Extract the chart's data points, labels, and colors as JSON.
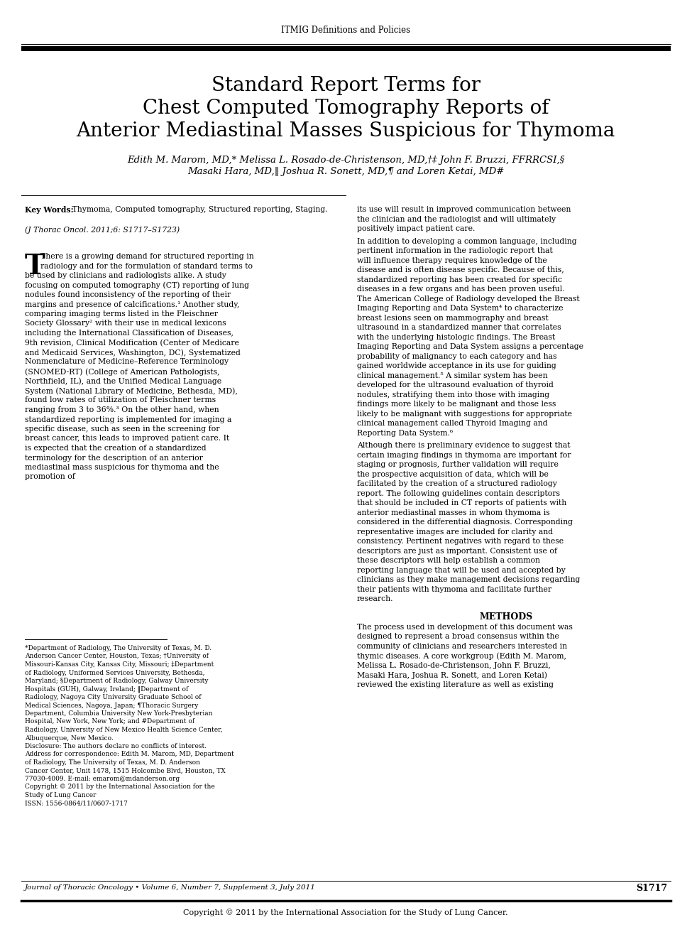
{
  "header_text": "ITMIG Definitions and Policies",
  "title_line1": "Standard Report Terms for",
  "title_line2": "Chest Computed Tomography Reports of",
  "title_line3": "Anterior Mediastinal Masses Suspicious for Thymoma",
  "authors_line1": "Edith M. Marom, MD,* Melissa L. Rosado-de-Christenson, MD,†‡ John F. Bruzzi, FFRRCSI,§",
  "authors_line2": "Masaki Hara, MD,‖ Joshua R. Sonett, MD,¶ and Loren Ketai, MD#",
  "left_col_kw_bold": "Key Words:",
  "left_col_kw_text": " Thymoma, Computed tomography, Structured reporting, Staging.",
  "left_col_journal": "(J Thorac Oncol. 2011;6: S1717–S1723)",
  "left_col_para1": "There is a growing demand for structured reporting in radiology and for the formulation of standard terms to be used by clinicians and radiologists alike. A study focusing on computed tomography (CT) reporting of lung nodules found inconsistency of the reporting of their margins and presence of calcifications.¹ Another study, comparing imaging terms listed in the Fleischner Society Glossary² with their use in medical lexicons including the International Classification of Diseases, 9th revision, Clinical Modification (Center of Medicare and Medicaid Services, Washington, DC), Systematized Nonmenclature of Medicine–Reference Terminology (SNOMED-RT) (College of American Pathologists, Northfield, IL), and the Unified Medical Language System (National Library of Medicine, Bethesda, MD), found low rates of utilization of Fleischner terms ranging from 3 to 36%.³ On the other hand, when standardized reporting is implemented for imaging a specific disease, such as seen in the screening for breast cancer, this leads to improved patient care. It is expected that the creation of a standardized terminology for the description of an anterior mediastinal mass suspicious for thymoma and the promotion of",
  "right_col_para1": "its use will result in improved communication between the clinician and the radiologist and will ultimately positively impact patient care.\n        In addition to developing a common language, including pertinent information in the radiologic report that will influence therapy requires knowledge of the disease and is often disease specific. Because of this, standardized reporting has been created for specific diseases in a few organs and has been proven useful. The American College of Radiology developed the Breast Imaging Reporting and Data System⁴ to characterize breast lesions seen on mammography and breast ultrasound in a standardized manner that correlates with the underlying histologic findings. The Breast Imaging Reporting and Data System assigns a percentage probability of malignancy to each category and has gained worldwide acceptance in its use for guiding clinical management.⁵ A similar system has been developed for the ultrasound evaluation of thyroid nodules, stratifying them into those with imaging findings more likely to be malignant and those less likely to be malignant with suggestions for appropriate clinical management called Thyroid Imaging and Reporting Data System.⁶\n        Although there is preliminary evidence to suggest that certain imaging findings in thymoma are important for staging or prognosis, further validation will require the prospective acquisition of data, which will be facilitated by the creation of a structured radiology report. The following guidelines contain descriptors that should be included in CT reports of patients with anterior mediastinal masses in whom thymoma is considered in the differential diagnosis. Corresponding representative images are included for clarity and consistency. Pertinent negatives with regard to these descriptors are just as important. Consistent use of these descriptors will help establish a common reporting language that will be used and accepted by clinicians as they make management decisions regarding their patients with thymoma and facilitate further research.",
  "right_methods_header": "METHODS",
  "right_methods_para": "The process used in development of this document was designed to represent a broad consensus within the community of clinicians and researchers interested in thymic diseases. A core workgroup (Edith M. Marom, Melissa L. Rosado-de-Christenson, John F. Bruzzi, Masaki Hara, Joshua R. Sonett, and Loren Ketai) reviewed the existing literature as well as existing",
  "footnote_text": "*Department of Radiology, The University of Texas, M. D. Anderson Cancer Center, Houston, Texas; †University of Missouri-Kansas City, Kansas City, Missouri; ‡Department of Radiology, Uniformed Services University, Bethesda, Maryland; §Department of Radiology, Galway University Hospitals (GUH), Galway, Ireland; ‖Department of Radiology, Nagoya City University Graduate School of Medical Sciences, Nagoya, Japan; ¶Thoracic Surgery Department, Columbia University New York-Presbyterian Hospital, New York, New York; and #Department of Radiology, University of New Mexico Health Science Center, Albuquerque, New Mexico.\nDisclosure: The authors declare no conflicts of interest.\nAddress for correspondence: Edith M. Marom, MD, Department of Radiology, The University of Texas, M. D. Anderson Cancer Center, Unit 1478, 1515 Holcombe Blvd, Houston, TX 77030-4009. E-mail: emarom@mdanderson.org\nCopyright © 2011 by the International Association for the Study of Lung Cancer\nISSN: 1556-0864/11/0607-1717",
  "footer_left": "Journal of Thoracic Oncology • Volume 6, Number 7, Supplement 3, July 2011",
  "footer_right": "S1717",
  "copyright_line": "Copyright © 2011 by the International Association for the Study of Lung Cancer.",
  "bg_color": "#ffffff",
  "text_color": "#000000"
}
